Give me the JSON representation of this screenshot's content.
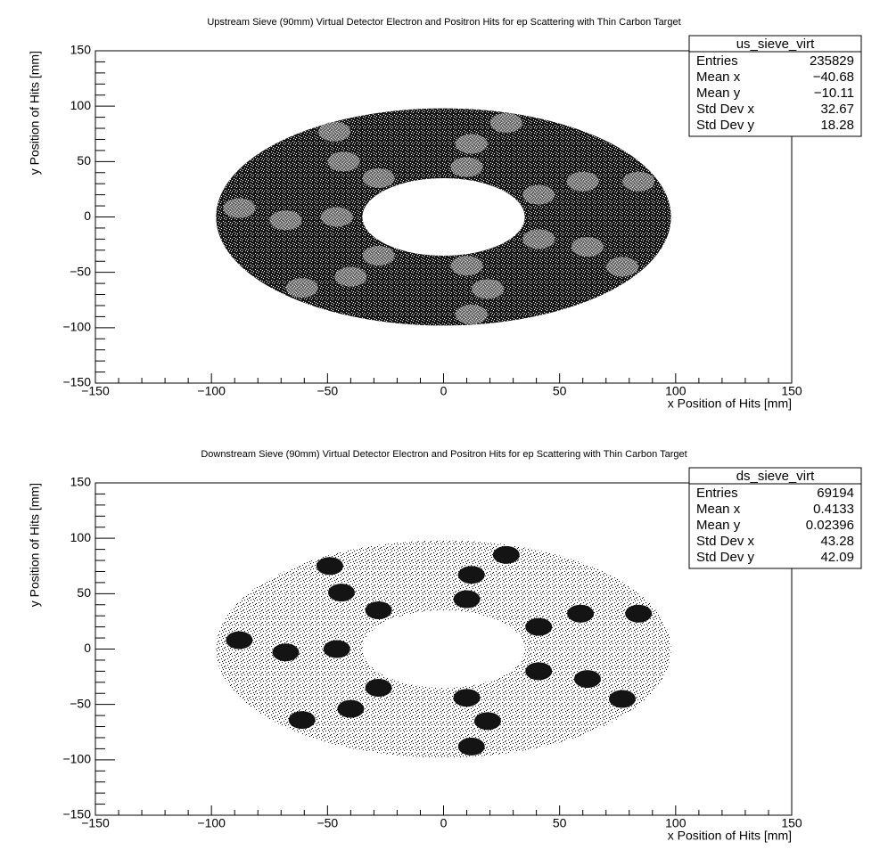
{
  "chart_data": [
    {
      "type": "scatter",
      "title": "Upstream Sieve (90mm) Virtual Detector Electron and Positron Hits for ep Scattering with Thin Carbon Target",
      "x_label": "x Position of Hits [mm]",
      "y_label": "y Position of Hits [mm]",
      "xlim": [
        -150,
        150
      ],
      "ylim": [
        -150,
        150
      ],
      "xticks": [
        {
          "value": -150,
          "label": "−150"
        },
        {
          "value": -100,
          "label": "−100"
        },
        {
          "value": -50,
          "label": "−50"
        },
        0,
        50,
        100,
        150
      ],
      "yticks": [
        {
          "value": -150,
          "label": "−150"
        },
        {
          "value": -100,
          "label": "−100"
        },
        {
          "value": -50,
          "label": "−50"
        },
        0,
        50,
        100,
        150
      ],
      "annulus": {
        "outer": [
          98,
          98
        ],
        "inner": [
          35,
          35
        ]
      },
      "spots_style": "light",
      "spots": [
        {
          "x": -47,
          "y": 77
        },
        {
          "x": 27,
          "y": 85
        },
        {
          "x": 12,
          "y": 66
        },
        {
          "x": -43,
          "y": 50
        },
        {
          "x": 10,
          "y": 45
        },
        {
          "x": -28,
          "y": 35
        },
        {
          "x": 60,
          "y": 32
        },
        {
          "x": 84,
          "y": 32
        },
        {
          "x": 41,
          "y": 20
        },
        {
          "x": -88,
          "y": 8
        },
        {
          "x": -68,
          "y": -3
        },
        {
          "x": -46,
          "y": 0
        },
        {
          "x": 41,
          "y": -20
        },
        {
          "x": 62,
          "y": -27
        },
        {
          "x": -28,
          "y": -35
        },
        {
          "x": 10,
          "y": -44
        },
        {
          "x": 77,
          "y": -45
        },
        {
          "x": -40,
          "y": -54
        },
        {
          "x": 19,
          "y": -65
        },
        {
          "x": -61,
          "y": -64
        },
        {
          "x": 12,
          "y": -88
        }
      ],
      "stats": {
        "name": "us_sieve_virt",
        "rows": [
          {
            "label": "Entries",
            "value": 235829
          },
          {
            "label": "Mean x",
            "value": -40.68,
            "value_label": "−40.68"
          },
          {
            "label": "Mean y",
            "value": -10.11,
            "value_label": "−10.11"
          },
          {
            "label": "Std Dev x",
            "value": 32.67
          },
          {
            "label": "Std Dev y",
            "value": 18.28
          }
        ]
      }
    },
    {
      "type": "scatter",
      "title": "Downstream Sieve (90mm) Virtual Detector Electron and Positron Hits for ep Scattering with Thin Carbon Target",
      "x_label": "x Position of Hits [mm]",
      "y_label": "y Position of Hits [mm]",
      "xlim": [
        -150,
        150
      ],
      "ylim": [
        -150,
        150
      ],
      "xticks": [
        {
          "value": -150,
          "label": "−150"
        },
        {
          "value": -100,
          "label": "−100"
        },
        {
          "value": -50,
          "label": "−50"
        },
        0,
        50,
        100,
        150
      ],
      "yticks": [
        {
          "value": -150,
          "label": "−150"
        },
        {
          "value": -100,
          "label": "−100"
        },
        {
          "value": -50,
          "label": "−50"
        },
        0,
        50,
        100,
        150
      ],
      "annulus": {
        "outer": [
          98,
          98
        ],
        "inner": [
          35,
          35
        ]
      },
      "spots_style": "dark",
      "spots": [
        {
          "x": -49,
          "y": 75
        },
        {
          "x": 27,
          "y": 85
        },
        {
          "x": 12,
          "y": 67
        },
        {
          "x": -44,
          "y": 51
        },
        {
          "x": 10,
          "y": 45
        },
        {
          "x": -28,
          "y": 35
        },
        {
          "x": 59,
          "y": 32
        },
        {
          "x": 84,
          "y": 32
        },
        {
          "x": 41,
          "y": 20
        },
        {
          "x": -88,
          "y": 8
        },
        {
          "x": -68,
          "y": -3
        },
        {
          "x": -46,
          "y": 0
        },
        {
          "x": 41,
          "y": -20
        },
        {
          "x": 62,
          "y": -27
        },
        {
          "x": -28,
          "y": -35
        },
        {
          "x": 10,
          "y": -44
        },
        {
          "x": 77,
          "y": -45
        },
        {
          "x": -40,
          "y": -54
        },
        {
          "x": 19,
          "y": -65
        },
        {
          "x": -61,
          "y": -64
        },
        {
          "x": 12,
          "y": -88
        }
      ],
      "stats": {
        "name": "ds_sieve_virt",
        "rows": [
          {
            "label": "Entries",
            "value": 69194
          },
          {
            "label": "Mean x",
            "value": 0.4133
          },
          {
            "label": "Mean y",
            "value": 0.02396
          },
          {
            "label": "Std Dev x",
            "value": 43.28
          },
          {
            "label": "Std Dev y",
            "value": 42.09
          }
        ]
      }
    }
  ]
}
